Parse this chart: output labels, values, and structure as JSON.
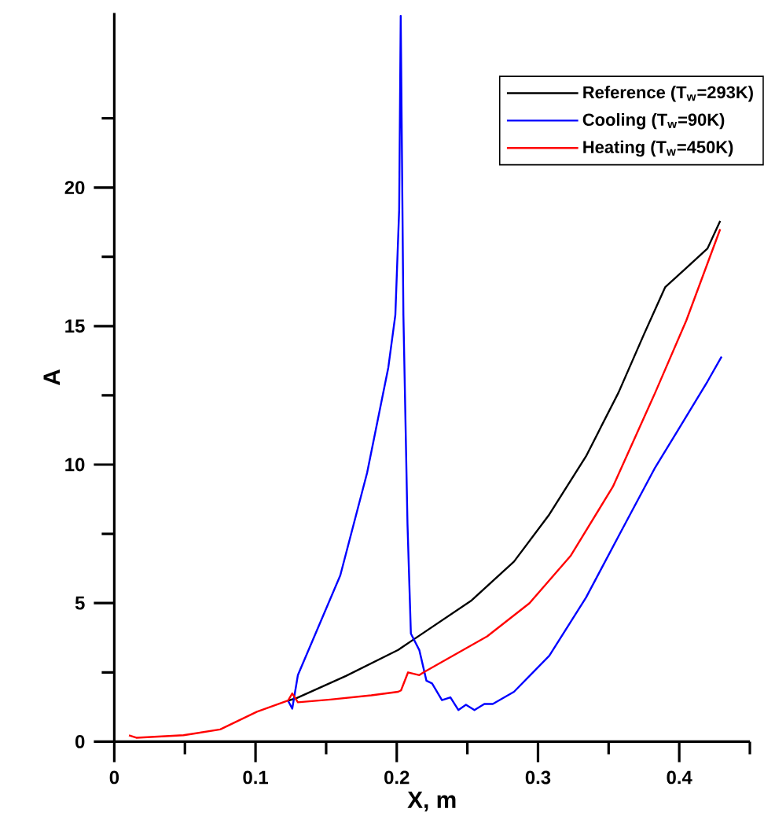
{
  "chart_data": {
    "type": "line",
    "xlabel": "X, m",
    "ylabel": "A",
    "xlim": [
      0,
      0.45
    ],
    "ylim": [
      0,
      26.3
    ],
    "xticks": [
      0,
      {
        "value": 0.05,
        "label": null
      },
      0.1,
      {
        "value": 0.15,
        "label": null
      },
      0.2,
      {
        "value": 0.25,
        "label": null
      },
      0.3,
      {
        "value": 0.35,
        "label": null
      },
      0.4,
      {
        "value": 0.45,
        "label": null
      }
    ],
    "yticks": [
      0,
      {
        "value": 2.5,
        "label": null
      },
      5,
      {
        "value": 7.5,
        "label": null
      },
      10,
      {
        "value": 12.5,
        "label": null
      },
      15,
      {
        "value": 17.5,
        "label": null
      },
      20,
      {
        "value": 22.5,
        "label": null
      }
    ],
    "grid": false,
    "legend": "top right",
    "marker": "none",
    "line_style": "solid",
    "series": [
      {
        "name": "Reference (T$_{w}$=293K)",
        "color": "#000000",
        "x": [
          0.123,
          0.129,
          0.164,
          0.201,
          0.212,
          0.253,
          0.283,
          0.308,
          0.334,
          0.357,
          0.375,
          0.39,
          0.405,
          0.42,
          0.429
        ],
        "values": [
          1.48,
          1.57,
          2.37,
          3.31,
          3.69,
          5.1,
          6.5,
          8.2,
          10.3,
          12.6,
          14.7,
          16.4,
          17.1,
          17.8,
          18.8
        ]
      },
      {
        "name": "Cooling (T$_{w}$=90K)",
        "color": "#0000ff",
        "x": [
          0.123,
          0.126,
          0.13,
          0.16,
          0.179,
          0.194,
          0.199,
          0.2017,
          0.2028,
          0.2047,
          0.2076,
          0.21,
          0.216,
          0.221,
          0.225,
          0.232,
          0.238,
          0.2436,
          0.249,
          0.255,
          0.262,
          0.268,
          0.283,
          0.308,
          0.334,
          0.36,
          0.383,
          0.401,
          0.42,
          0.43
        ],
        "values": [
          1.48,
          1.19,
          2.4,
          6.0,
          9.7,
          13.5,
          15.4,
          19.2,
          26.2,
          15.4,
          7.85,
          3.9,
          3.3,
          2.2,
          2.1,
          1.5,
          1.6,
          1.14,
          1.33,
          1.14,
          1.36,
          1.36,
          1.8,
          3.1,
          5.2,
          7.7,
          9.9,
          11.4,
          13.0,
          13.9
        ]
      },
      {
        "name": "Heating (T$_{w}$=450K)",
        "color": "#ff0000",
        "x": [
          0.0104,
          0.0156,
          0.049,
          0.075,
          0.101,
          0.123,
          0.126,
          0.13,
          0.153,
          0.182,
          0.201,
          0.203,
          0.208,
          0.216,
          0.219,
          0.264,
          0.294,
          0.323,
          0.353,
          0.383,
          0.405,
          0.429
        ],
        "values": [
          0.23,
          0.14,
          0.23,
          0.44,
          1.08,
          1.48,
          1.74,
          1.42,
          1.52,
          1.67,
          1.8,
          1.85,
          2.5,
          2.4,
          2.5,
          3.8,
          5.0,
          6.7,
          9.2,
          12.6,
          15.2,
          18.5
        ]
      }
    ]
  }
}
